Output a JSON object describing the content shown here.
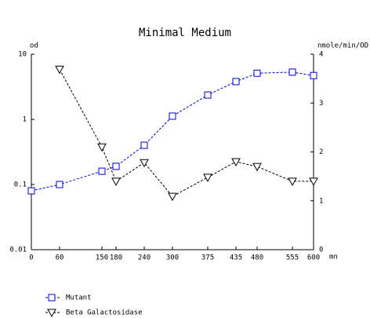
{
  "chart_data": {
    "type": "line",
    "title": "Minimal Medium",
    "x_label": "mn",
    "y_label": "od",
    "y2_label": "nmole/min/OD",
    "x": [
      0,
      60,
      150,
      180,
      240,
      300,
      375,
      435,
      480,
      555,
      600
    ],
    "xlim": [
      0,
      600
    ],
    "xticks": [
      0,
      60,
      150,
      180,
      240,
      300,
      375,
      435,
      480,
      555,
      600
    ],
    "ylim": [
      0.01,
      10
    ],
    "yticks": [
      0.01,
      0.1,
      1,
      10
    ],
    "ylog": true,
    "y2lim": [
      0,
      4
    ],
    "y2ticks": [
      0,
      1,
      2,
      3,
      4
    ],
    "series": [
      {
        "name": "Mutant",
        "color": "#0000cc",
        "marker": "square",
        "axis": "y",
        "values": [
          0.08,
          0.1,
          0.16,
          0.19,
          0.4,
          1.12,
          2.36,
          3.8,
          5.1,
          5.3,
          4.7
        ]
      },
      {
        "name": "Beta Galactosidase",
        "color": "#000000",
        "marker": "triangle",
        "axis": "y2",
        "values": [
          null,
          3.69,
          2.1,
          1.4,
          1.78,
          1.09,
          1.48,
          1.8,
          1.7,
          1.4,
          1.4
        ]
      }
    ]
  }
}
